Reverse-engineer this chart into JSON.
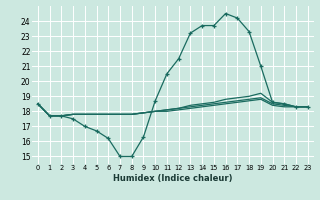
{
  "xlabel": "Humidex (Indice chaleur)",
  "bg_color": "#cce8e0",
  "grid_color": "#ffffff",
  "line_color": "#1a6b60",
  "xlim": [
    -0.5,
    23.5
  ],
  "ylim": [
    14.5,
    25.0
  ],
  "yticks": [
    15,
    16,
    17,
    18,
    19,
    20,
    21,
    22,
    23,
    24
  ],
  "xticks": [
    0,
    1,
    2,
    3,
    4,
    5,
    6,
    7,
    8,
    9,
    10,
    11,
    12,
    13,
    14,
    15,
    16,
    17,
    18,
    19,
    20,
    21,
    22,
    23
  ],
  "main_x": [
    0,
    1,
    2,
    3,
    4,
    5,
    6,
    7,
    8,
    9,
    10,
    11,
    12,
    13,
    14,
    15,
    16,
    17,
    18,
    19,
    20,
    21,
    22,
    23
  ],
  "main_y": [
    18.5,
    17.7,
    17.7,
    17.5,
    17.0,
    16.7,
    16.2,
    15.0,
    15.0,
    16.3,
    18.7,
    20.5,
    21.5,
    23.2,
    23.7,
    23.7,
    24.5,
    24.2,
    23.3,
    21.0,
    18.6,
    18.5,
    18.3,
    18.3
  ],
  "line2_x": [
    0,
    1,
    2,
    3,
    4,
    5,
    6,
    7,
    8,
    9,
    10,
    11,
    12,
    13,
    14,
    15,
    16,
    17,
    18,
    19,
    20,
    21,
    22,
    23
  ],
  "line2_y": [
    18.5,
    17.7,
    17.7,
    17.8,
    17.8,
    17.8,
    17.8,
    17.8,
    17.8,
    17.9,
    18.0,
    18.1,
    18.2,
    18.4,
    18.5,
    18.6,
    18.8,
    18.9,
    19.0,
    19.2,
    18.6,
    18.5,
    18.3,
    18.3
  ],
  "line3_x": [
    0,
    1,
    2,
    3,
    4,
    5,
    6,
    7,
    8,
    9,
    10,
    11,
    12,
    13,
    14,
    15,
    16,
    17,
    18,
    19,
    20,
    21,
    22,
    23
  ],
  "line3_y": [
    18.5,
    17.7,
    17.7,
    17.8,
    17.8,
    17.8,
    17.8,
    17.8,
    17.8,
    17.9,
    18.0,
    18.1,
    18.2,
    18.3,
    18.4,
    18.5,
    18.6,
    18.7,
    18.8,
    18.9,
    18.5,
    18.4,
    18.3,
    18.3
  ],
  "line4_x": [
    0,
    1,
    2,
    3,
    4,
    5,
    6,
    7,
    8,
    9,
    10,
    11,
    12,
    13,
    14,
    15,
    16,
    17,
    18,
    19,
    20,
    21,
    22,
    23
  ],
  "line4_y": [
    18.5,
    17.7,
    17.7,
    17.8,
    17.8,
    17.8,
    17.8,
    17.8,
    17.8,
    17.9,
    18.0,
    18.0,
    18.1,
    18.2,
    18.3,
    18.4,
    18.5,
    18.6,
    18.7,
    18.8,
    18.4,
    18.3,
    18.3,
    18.3
  ]
}
